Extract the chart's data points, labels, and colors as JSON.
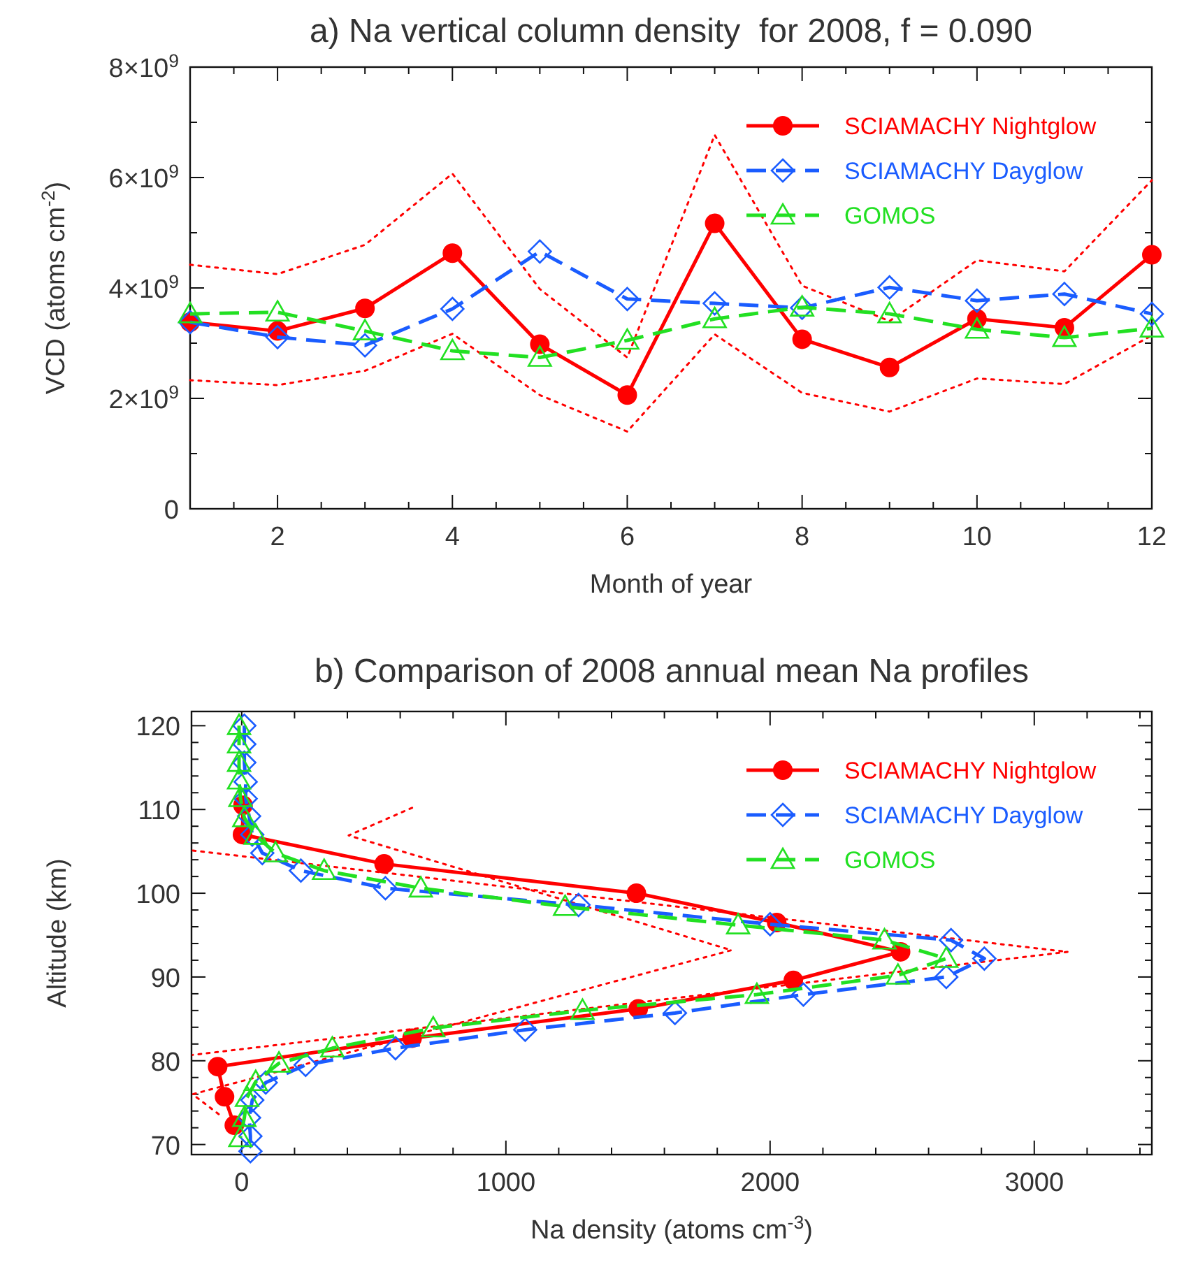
{
  "chart_data": [
    {
      "type": "line",
      "title": "a) Na vertical column density  for 2008, f = 0.090",
      "xlabel": "Month of year",
      "ylabel": "VCD (atoms cm$^{-2}$)",
      "x": [
        1,
        2,
        3,
        4,
        5,
        6,
        7,
        8,
        9,
        10,
        11,
        12
      ],
      "xlim": [
        1,
        12
      ],
      "xticks": [
        {
          "value": 1.5,
          "label": null
        },
        2,
        {
          "value": 2.5,
          "label": null
        },
        {
          "value": 3,
          "label": null
        },
        {
          "value": 3.5,
          "label": null
        },
        4,
        {
          "value": 4.5,
          "label": null
        },
        {
          "value": 5,
          "label": null
        },
        {
          "value": 5.5,
          "label": null
        },
        6,
        {
          "value": 6.5,
          "label": null
        },
        {
          "value": 7,
          "label": null
        },
        {
          "value": 7.5,
          "label": null
        },
        8,
        {
          "value": 8.5,
          "label": null
        },
        {
          "value": 9,
          "label": null
        },
        {
          "value": 9.5,
          "label": null
        },
        10,
        {
          "value": 10.5,
          "label": null
        },
        {
          "value": 11,
          "label": null
        },
        {
          "value": 11.5,
          "label": null
        },
        12
      ],
      "ylim": [
        0,
        8000000000.0
      ],
      "yticks": [
        0,
        {
          "value": 1000000000.0,
          "label": null
        },
        {
          "value": 2000000000.0,
          "label": "2×10$^{9}$"
        },
        {
          "value": 3000000000.0,
          "label": null
        },
        {
          "value": 4000000000.0,
          "label": "4×10$^{9}$"
        },
        {
          "value": 5000000000.0,
          "label": null
        },
        {
          "value": 6000000000.0,
          "label": "6×10$^{9}$"
        },
        {
          "value": 7000000000.0,
          "label": null
        },
        {
          "value": 8000000000.0,
          "label": "8×10$^{9}$"
        }
      ],
      "legend": "top right",
      "series": [
        {
          "color": "#ff0000",
          "line_style": "dotted",
          "marker": "none",
          "values": [
            4420000000.0,
            4250000000.0,
            4780000000.0,
            6070000000.0,
            3980000000.0,
            2740000000.0,
            6770000000.0,
            4040000000.0,
            3400000000.0,
            4500000000.0,
            4300000000.0,
            5950000000.0
          ]
        },
        {
          "color": "#ff0000",
          "line_style": "dotted",
          "marker": "none",
          "values": [
            2330000000.0,
            2240000000.0,
            2500000000.0,
            3170000000.0,
            2060000000.0,
            1400000000.0,
            3160000000.0,
            2100000000.0,
            1760000000.0,
            2360000000.0,
            2260000000.0,
            3140000000.0
          ]
        },
        {
          "name": "SCIAMACHY Nightglow",
          "color": "#ff0000",
          "line_style": "solid",
          "marker": "circle",
          "values": [
            3380000000.0,
            3220000000.0,
            3630000000.0,
            4630000000.0,
            2980000000.0,
            2060000000.0,
            5170000000.0,
            3070000000.0,
            2560000000.0,
            3440000000.0,
            3280000000.0,
            4600000000.0
          ]
        },
        {
          "name": "SCIAMACHY Dayglow",
          "color": "#1a5cff",
          "line_style": "dashed",
          "marker": "diamond",
          "values": [
            3380000000.0,
            3110000000.0,
            2960000000.0,
            3620000000.0,
            4660000000.0,
            3800000000.0,
            3720000000.0,
            3640000000.0,
            4010000000.0,
            3770000000.0,
            3890000000.0,
            3530000000.0
          ]
        },
        {
          "name": "GOMOS",
          "color": "#22e022",
          "line_style": "dashed",
          "marker": "triangle",
          "values": [
            3530000000.0,
            3560000000.0,
            3220000000.0,
            2860000000.0,
            2740000000.0,
            3050000000.0,
            3440000000.0,
            3650000000.0,
            3530000000.0,
            3250000000.0,
            3100000000.0,
            3270000000.0
          ]
        }
      ]
    },
    {
      "type": "line",
      "title": "b) Comparison of 2008 annual mean Na profiles",
      "xlabel": "Na density (atoms cm$^{-3}$)",
      "ylabel": "Altitude (km)",
      "xlim": [
        -190,
        3445
      ],
      "xticks": [
        0,
        {
          "value": 200,
          "label": null
        },
        {
          "value": 400,
          "label": null
        },
        {
          "value": 600,
          "label": null
        },
        {
          "value": 800,
          "label": null
        },
        1000,
        {
          "value": 1200,
          "label": null
        },
        {
          "value": 1400,
          "label": null
        },
        {
          "value": 1600,
          "label": null
        },
        {
          "value": 1800,
          "label": null
        },
        2000,
        {
          "value": 2200,
          "label": null
        },
        {
          "value": 2400,
          "label": null
        },
        {
          "value": 2600,
          "label": null
        },
        {
          "value": 2800,
          "label": null
        },
        3000,
        {
          "value": 3200,
          "label": null
        },
        {
          "value": 3400,
          "label": null
        }
      ],
      "ylim": [
        68.8,
        121.7
      ],
      "yticks": [
        70,
        {
          "value": 72,
          "label": null
        },
        {
          "value": 74,
          "label": null
        },
        {
          "value": 76,
          "label": null
        },
        {
          "value": 78,
          "label": null
        },
        80,
        {
          "value": 82,
          "label": null
        },
        {
          "value": 84,
          "label": null
        },
        {
          "value": 86,
          "label": null
        },
        {
          "value": 88,
          "label": null
        },
        90,
        {
          "value": 92,
          "label": null
        },
        {
          "value": 94,
          "label": null
        },
        {
          "value": 96,
          "label": null
        },
        {
          "value": 98,
          "label": null
        },
        100,
        {
          "value": 102,
          "label": null
        },
        {
          "value": 104,
          "label": null
        },
        {
          "value": 106,
          "label": null
        },
        {
          "value": 108,
          "label": null
        },
        110,
        {
          "value": 112,
          "label": null
        },
        {
          "value": 114,
          "label": null
        },
        {
          "value": 116,
          "label": null
        },
        {
          "value": 118,
          "label": null
        },
        120
      ],
      "legend": "top right",
      "series": [
        {
          "color": "#ff0000",
          "line_style": "dotted",
          "marker": "none",
          "x": [
            -185,
            3126,
            -185
          ],
          "values": [
            105.1,
            93,
            80.7
          ]
        },
        {
          "color": "#ff0000",
          "line_style": "dotted",
          "marker": "none",
          "x": [
            645,
            405,
            1854,
            -186,
            -86
          ],
          "values": [
            110.2,
            106.9,
            93.2,
            76,
            73.6
          ]
        },
        {
          "name": "SCIAMACHY Nightglow",
          "color": "#ff0000",
          "line_style": "solid",
          "marker": "circle",
          "x": [
            5,
            3,
            539,
            1494,
            2025,
            2494,
            2088,
            1501,
            645,
            -91,
            -65,
            -28
          ],
          "values": [
            110.5,
            107,
            103.5,
            100,
            96.5,
            93,
            89.6,
            86.2,
            82.7,
            79.3,
            75.7,
            72.3
          ]
        },
        {
          "name": "SCIAMACHY Dayglow",
          "color": "#1a5cff",
          "line_style": "dashed",
          "marker": "diamond",
          "x": [
            10,
            10,
            10,
            15,
            15,
            28,
            40,
            78,
            224,
            544,
            1275,
            2000,
            2685,
            2811,
            2667,
            2126,
            1640,
            1073,
            582,
            242,
            91,
            40,
            28,
            33,
            33
          ],
          "values": [
            120,
            117.8,
            115.6,
            113.3,
            111.3,
            109.2,
            107,
            104.8,
            102.7,
            100.6,
            98.6,
            96.3,
            94.4,
            92.2,
            90,
            87.9,
            85.7,
            83.7,
            81.5,
            79.5,
            77.4,
            75.3,
            73.2,
            71,
            69.2
          ]
        },
        {
          "name": "GOMOS",
          "color": "#22e022",
          "line_style": "dashed",
          "marker": "triangle",
          "x": [
            -10,
            -10,
            -10,
            -10,
            -5,
            10,
            53,
            128,
            312,
            678,
            1224,
            1879,
            2433,
            2667,
            2484,
            1950,
            1290,
            725,
            343,
            141,
            53,
            20,
            10,
            -5
          ],
          "values": [
            120,
            117.8,
            115.6,
            113.5,
            111.4,
            109,
            106.9,
            104.8,
            102.7,
            100.6,
            98.4,
            96.2,
            94.4,
            92.2,
            90.2,
            87.9,
            86,
            83.9,
            81.5,
            79.7,
            77.5,
            75.6,
            73.2,
            70.8
          ]
        }
      ]
    }
  ]
}
